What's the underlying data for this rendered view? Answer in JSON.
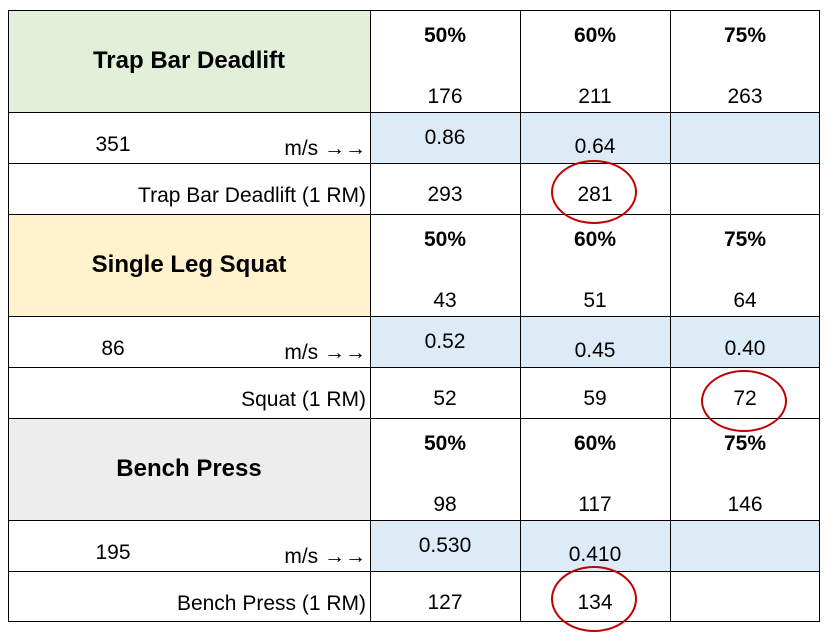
{
  "colors": {
    "green": "#e2efd9",
    "yellow": "#fff2cc",
    "gray": "#ededed",
    "blue": "#ddebf7",
    "circle": "#c00000"
  },
  "sections": [
    {
      "title": "Trap Bar Deadlift",
      "pct": [
        "50%",
        "60%",
        "75%"
      ],
      "loads": [
        "176",
        "211",
        "263"
      ],
      "base": "351",
      "ms_label": "m/s →→",
      "velocities": [
        "0.86",
        "0.64",
        ""
      ],
      "rm_label": "Trap Bar Deadlift (1 RM)",
      "rm_values": [
        "293",
        "281",
        ""
      ]
    },
    {
      "title": "Single Leg Squat",
      "pct": [
        "50%",
        "60%",
        "75%"
      ],
      "loads": [
        "43",
        "51",
        "64"
      ],
      "base": "86",
      "ms_label": "m/s →→",
      "velocities": [
        "0.52",
        "0.45",
        "0.40"
      ],
      "rm_label": "Squat (1 RM)",
      "rm_values": [
        "52",
        "59",
        "72"
      ]
    },
    {
      "title": "Bench Press",
      "pct": [
        "50%",
        "60%",
        "75%"
      ],
      "loads": [
        "98",
        "117",
        "146"
      ],
      "base": "195",
      "ms_label": "m/s →→",
      "velocities": [
        "0.530",
        "0.410",
        ""
      ],
      "rm_label": "Bench Press (1 RM)",
      "rm_values": [
        "127",
        "134",
        ""
      ]
    }
  ]
}
